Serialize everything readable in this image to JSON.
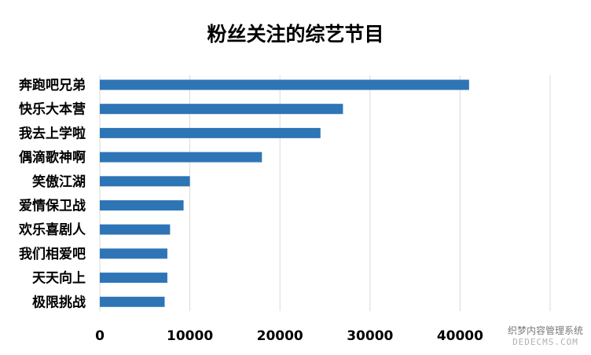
{
  "chart_data": {
    "type": "bar",
    "orientation": "horizontal",
    "title": "粉丝关注的综艺节目",
    "categories": [
      "奔跑吧兄弟",
      "快乐大本营",
      "我去上学啦",
      "偶滴歌神啊",
      "笑傲江湖",
      "爱情保卫战",
      "欢乐喜剧人",
      "我们相爱吧",
      "天天向上",
      "极限挑战"
    ],
    "values": [
      41000,
      27000,
      24500,
      18000,
      10000,
      9300,
      7800,
      7500,
      7500,
      7200
    ],
    "xlim": [
      0,
      50000
    ],
    "ticks": [
      0,
      10000,
      20000,
      30000,
      40000
    ],
    "tick_labels": [
      "0",
      "10000",
      "20000",
      "30000",
      "40000"
    ],
    "grid": true,
    "legend": "none",
    "bar_color": "#2e75b6"
  },
  "watermark": {
    "line1": "织梦内容管理系统",
    "line2": "DEDECMS.COM"
  }
}
